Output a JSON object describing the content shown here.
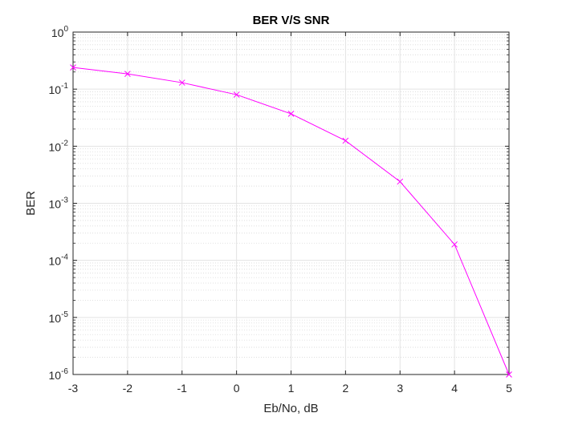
{
  "chart_data": {
    "type": "line",
    "title": "BER V/S SNR",
    "xlabel": "Eb/No, dB",
    "ylabel": "BER",
    "xlim": [
      -3,
      5
    ],
    "ylim": [
      1e-06,
      1
    ],
    "yscale": "log",
    "grid": true,
    "minor_grid": true,
    "legend": "none",
    "xticks": [
      "-3",
      "-2",
      "-1",
      "0",
      "1",
      "2",
      "3",
      "4",
      "5"
    ],
    "yticks": [
      {
        "base": "10",
        "exp": "-6"
      },
      {
        "base": "10",
        "exp": "-5"
      },
      {
        "base": "10",
        "exp": "-4"
      },
      {
        "base": "10",
        "exp": "-3"
      },
      {
        "base": "10",
        "exp": "-2"
      },
      {
        "base": "10",
        "exp": "-1"
      },
      {
        "base": "10",
        "exp": "0"
      }
    ],
    "series": [
      {
        "color": "#ff00ff",
        "marker": "x",
        "x": [
          -3,
          -2,
          -1,
          0,
          1,
          2,
          3,
          4,
          5
        ],
        "y": [
          0.24,
          0.185,
          0.13,
          0.08,
          0.037,
          0.0125,
          0.0024,
          0.00019,
          1e-06
        ]
      }
    ]
  }
}
